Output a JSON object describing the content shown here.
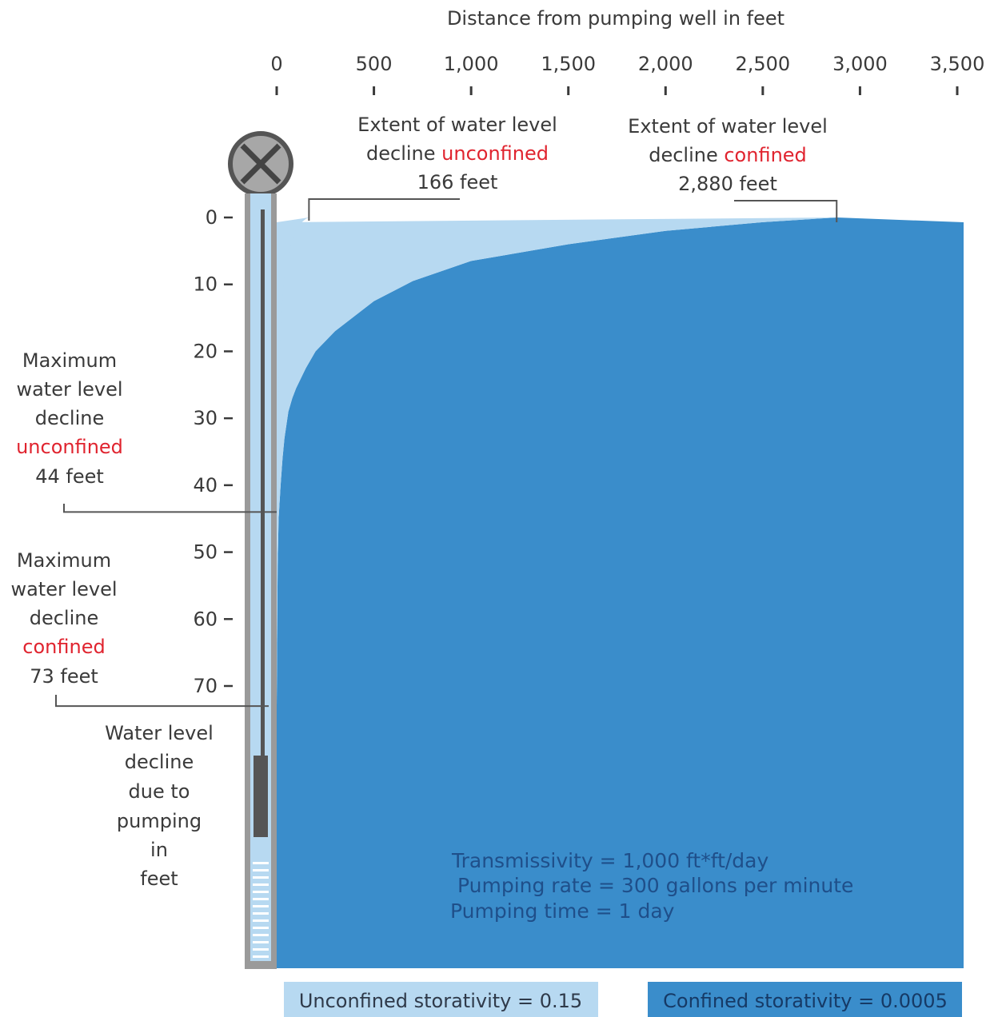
{
  "chart_data": {
    "type": "area",
    "title": "Distance from pumping well in feet",
    "xlabel": "Distance from pumping well in feet",
    "ylabel": "Water level decline due to pumping in feet",
    "ylabel_lines": [
      "Water level",
      "decline",
      "due to",
      "pumping",
      "in",
      "feet"
    ],
    "xlim": [
      0,
      3500
    ],
    "ylim": [
      0,
      80
    ],
    "x_ticks": [
      0,
      500,
      1000,
      1500,
      2000,
      2500,
      3000,
      3500
    ],
    "x_tick_labels": [
      "0",
      "500",
      "1,000",
      "1,500",
      "2,000",
      "2,500",
      "3,000",
      "3,500"
    ],
    "y_ticks": [
      0,
      10,
      20,
      30,
      40,
      50,
      60,
      70
    ],
    "y_tick_labels": [
      "0",
      "10",
      "20",
      "30",
      "40",
      "50",
      "60",
      "70"
    ],
    "series": [
      {
        "name": "Unconfined storativity = 0.15",
        "color": "#b7d9f1",
        "x": [
          0,
          2,
          5,
          10,
          15,
          20,
          30,
          40,
          60,
          80,
          100,
          125,
          150,
          166
        ],
        "y": [
          44,
          38,
          32,
          26,
          21,
          17.5,
          12,
          9,
          5.5,
          3.2,
          1.8,
          0.8,
          0.2,
          0
        ]
      },
      {
        "name": "Confined storativity = 0.0005",
        "color": "#3a8dcb",
        "x": [
          0,
          3,
          5,
          10,
          20,
          30,
          40,
          60,
          80,
          100,
          150,
          200,
          300,
          500,
          700,
          1000,
          1500,
          2000,
          2500,
          2880
        ],
        "y": [
          73,
          60,
          52,
          45,
          40,
          36,
          33,
          29,
          27,
          25.5,
          22.5,
          20,
          17,
          12.5,
          9.5,
          6.5,
          4,
          2,
          0.7,
          0
        ]
      }
    ],
    "annotations": {
      "extent_unconfined": {
        "line1": "Extent of water level",
        "line2_prefix": "decline ",
        "line2_red": "unconfined",
        "line3": "166 feet",
        "value": 166
      },
      "extent_confined": {
        "line1": "Extent of water level",
        "line2_prefix": "decline ",
        "line2_red": "confined",
        "line3": "2,880 feet",
        "value": 2880
      },
      "max_unconfined": {
        "lines": [
          "Maximum",
          "water level",
          "decline"
        ],
        "red": "unconfined",
        "value_label": "44 feet",
        "value": 44
      },
      "max_confined": {
        "lines": [
          "Maximum",
          "water level",
          "decline"
        ],
        "red": "confined",
        "value_label": "73 feet",
        "value": 73
      }
    },
    "parameters": [
      "Transmissivity = 1,000 ft*ft/day",
      "Pumping rate = 300 gallons per minute",
      "Pumping time = 1 day"
    ],
    "legend": {
      "placement": "bottom",
      "items": [
        {
          "label": "Unconfined storativity = 0.15",
          "color": "#b7d9f1"
        },
        {
          "label": "Confined storativity = 0.0005",
          "color": "#3a8dcb"
        }
      ]
    }
  },
  "colors": {
    "confined": "#3a8dcb",
    "unconfined": "#b7d9f1",
    "well_casing": "#9a9a9a",
    "param_text": "#1f4f8a",
    "highlight_red": "#e0242f"
  },
  "icons": {
    "well_head": "well-valve-icon"
  }
}
